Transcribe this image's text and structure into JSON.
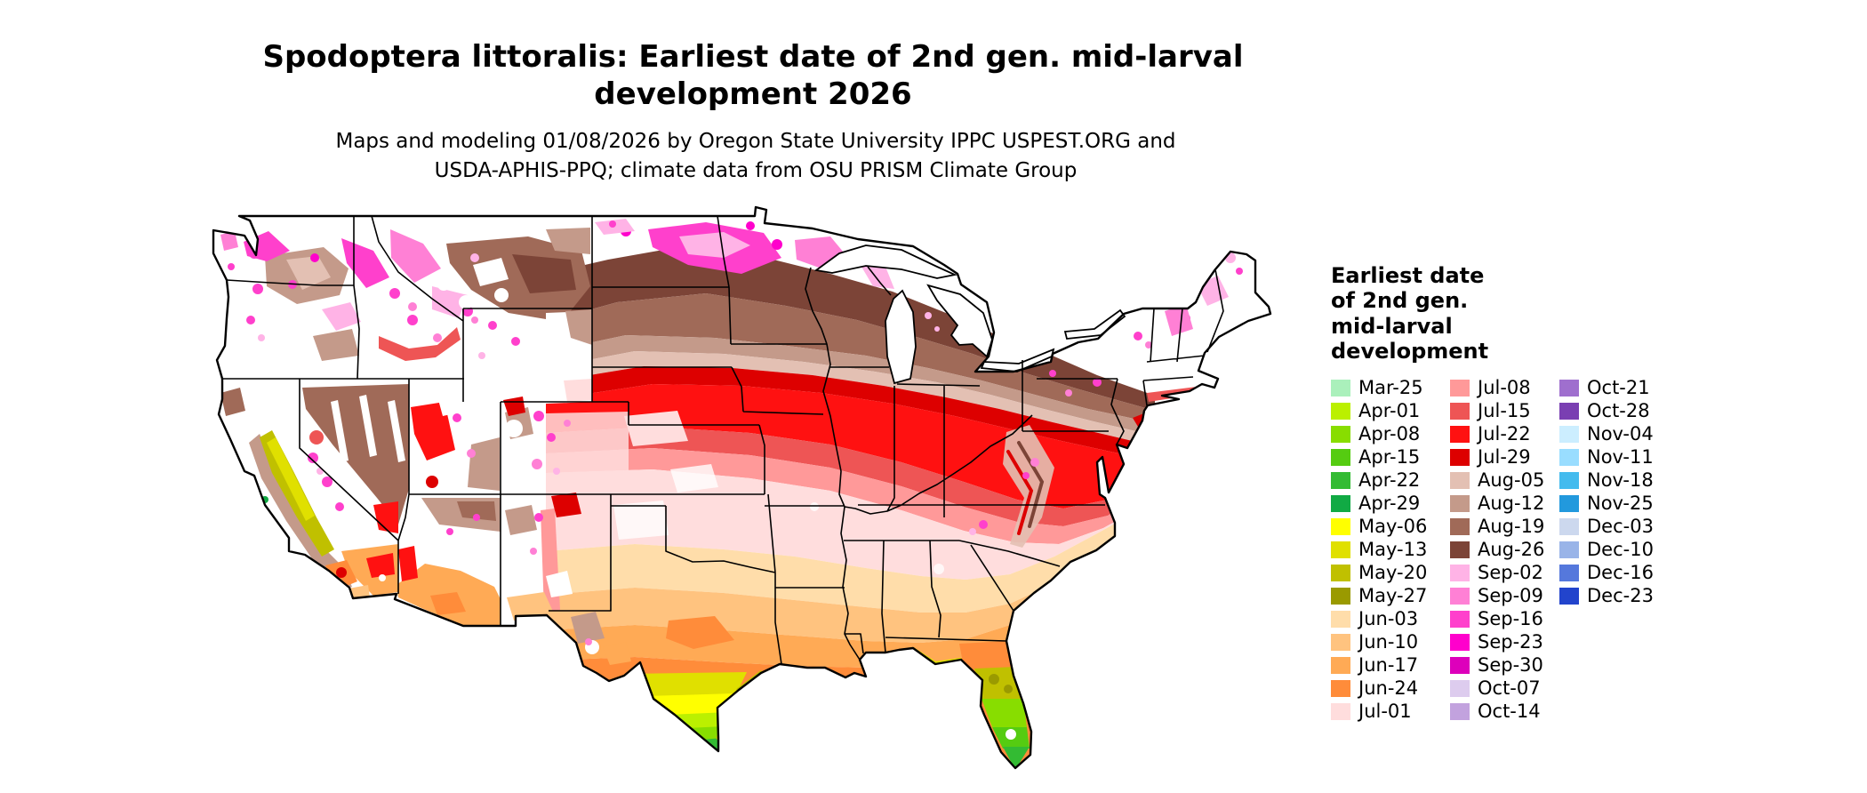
{
  "title": {
    "line1": "Spodoptera littoralis: Earliest date of 2nd gen. mid-larval",
    "line2": "development 2026"
  },
  "subtitle": {
    "line1": "Maps and modeling 01/08/2026 by Oregon State University IPPC USPEST.ORG and",
    "line2": "USDA-APHIS-PPQ; climate data from OSU PRISM Climate Group"
  },
  "legend": {
    "title_lines": [
      "Earliest date",
      "of 2nd gen.",
      "mid-larval",
      "development"
    ],
    "columns": [
      {
        "items": [
          {
            "label": "Mar-25",
            "color": "#aaf0bb"
          },
          {
            "label": "Apr-01",
            "color": "#bbf000"
          },
          {
            "label": "Apr-08",
            "color": "#88dd00"
          },
          {
            "label": "Apr-15",
            "color": "#55cc11"
          },
          {
            "label": "Apr-22",
            "color": "#33bb33"
          },
          {
            "label": "Apr-29",
            "color": "#11aa44"
          },
          {
            "label": "May-06",
            "color": "#ffff00"
          },
          {
            "label": "May-13",
            "color": "#e0e000"
          },
          {
            "label": "May-20",
            "color": "#c0c000"
          },
          {
            "label": "May-27",
            "color": "#9a9a00"
          },
          {
            "label": "Jun-03",
            "color": "#ffddaa"
          },
          {
            "label": "Jun-10",
            "color": "#ffc37f"
          },
          {
            "label": "Jun-17",
            "color": "#ffaa55"
          },
          {
            "label": "Jun-24",
            "color": "#ff8c3a"
          },
          {
            "label": "Jul-01",
            "color": "#ffdddd"
          }
        ]
      },
      {
        "items": [
          {
            "label": "Jul-08",
            "color": "#ff9999"
          },
          {
            "label": "Jul-15",
            "color": "#ee5555"
          },
          {
            "label": "Jul-22",
            "color": "#ff1111"
          },
          {
            "label": "Jul-29",
            "color": "#dd0000"
          },
          {
            "label": "Aug-05",
            "color": "#e3c0b3"
          },
          {
            "label": "Aug-12",
            "color": "#c49a8a"
          },
          {
            "label": "Aug-19",
            "color": "#a06a58"
          },
          {
            "label": "Aug-26",
            "color": "#7c4437"
          },
          {
            "label": "Sep-02",
            "color": "#ffb3e6"
          },
          {
            "label": "Sep-09",
            "color": "#ff80d5"
          },
          {
            "label": "Sep-16",
            "color": "#ff40cc"
          },
          {
            "label": "Sep-23",
            "color": "#ff00cc"
          },
          {
            "label": "Sep-30",
            "color": "#dd00bb"
          },
          {
            "label": "Oct-07",
            "color": "#ddccee"
          },
          {
            "label": "Oct-14",
            "color": "#c2a2de"
          }
        ]
      },
      {
        "items": [
          {
            "label": "Oct-21",
            "color": "#9f6fce"
          },
          {
            "label": "Oct-28",
            "color": "#7a3fb2"
          },
          {
            "label": "Nov-04",
            "color": "#cceeff"
          },
          {
            "label": "Nov-11",
            "color": "#99ddff"
          },
          {
            "label": "Nov-18",
            "color": "#44bbee"
          },
          {
            "label": "Nov-25",
            "color": "#2299dd"
          },
          {
            "label": "Dec-03",
            "color": "#ccd8ee"
          },
          {
            "label": "Dec-10",
            "color": "#99b4e8"
          },
          {
            "label": "Dec-16",
            "color": "#5578dc"
          },
          {
            "label": "Dec-23",
            "color": "#2244cc"
          }
        ]
      }
    ]
  }
}
